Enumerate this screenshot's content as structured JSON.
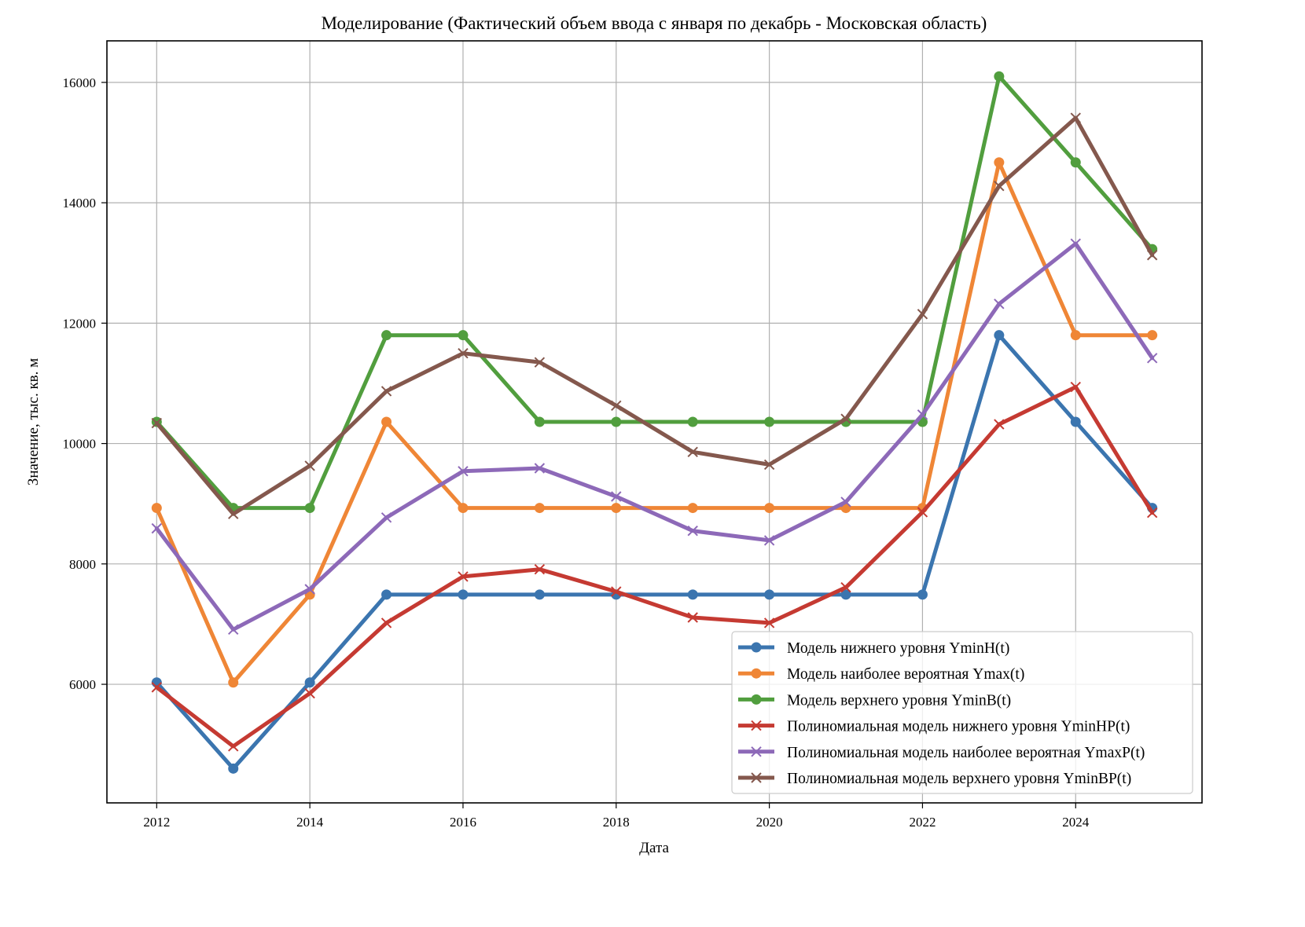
{
  "chart_data": {
    "type": "line",
    "title": "Моделирование (Фактический объем ввода с января по декабрь - Московская область)",
    "xlabel": "Дата",
    "ylabel": "Значение, тыс. кв. м",
    "x": [
      2012,
      2013,
      2014,
      2015,
      2016,
      2017,
      2018,
      2019,
      2020,
      2021,
      2022,
      2023,
      2024,
      2025
    ],
    "xticks": [
      2012,
      2014,
      2016,
      2018,
      2020,
      2022,
      2024
    ],
    "yticks": [
      6000,
      8000,
      10000,
      12000,
      14000,
      16000
    ],
    "xlim": [
      2011.35,
      2025.65
    ],
    "ylim": [
      4030,
      16690
    ],
    "grid": true,
    "legend_position": "lower right",
    "series": [
      {
        "name": "Модель нижнего уровня YminH(t)",
        "color": "#3b75af",
        "marker": "circle",
        "values": [
          6030,
          4600,
          6030,
          7490,
          7490,
          7490,
          7490,
          7490,
          7490,
          7490,
          7490,
          11800,
          10360,
          8930
        ]
      },
      {
        "name": "Модель наиболее вероятная Ymax(t)",
        "color": "#ef8636",
        "marker": "circle",
        "values": [
          8930,
          6030,
          7490,
          10360,
          8930,
          8930,
          8930,
          8930,
          8930,
          8930,
          8930,
          14670,
          11800,
          11800
        ]
      },
      {
        "name": "Модель верхнего уровня YminB(t)",
        "color": "#519e3e",
        "marker": "circle",
        "values": [
          10360,
          8930,
          8930,
          11800,
          11800,
          10360,
          10360,
          10360,
          10360,
          10360,
          10360,
          16100,
          14670,
          13230
        ]
      },
      {
        "name": "Полиномиальная модель нижнего уровня YminHP(t)",
        "color": "#c53a32",
        "marker": "x",
        "values": [
          5950,
          4970,
          5850,
          7020,
          7790,
          7910,
          7540,
          7110,
          7020,
          7610,
          8860,
          10320,
          10940,
          8850
        ]
      },
      {
        "name": "Полиномиальная модель наиболее вероятная YmaxP(t)",
        "color": "#8d69b8",
        "marker": "x",
        "values": [
          8590,
          6910,
          7580,
          8770,
          9540,
          9590,
          9120,
          8550,
          8390,
          9030,
          10480,
          12320,
          13320,
          11420
        ]
      },
      {
        "name": "Полиномиальная модель верхнего уровня YminBP(t)",
        "color": "#84584d",
        "marker": "x",
        "values": [
          10340,
          8830,
          9630,
          10870,
          11500,
          11350,
          10630,
          9860,
          9650,
          10410,
          12150,
          14280,
          15410,
          13130
        ]
      }
    ]
  }
}
